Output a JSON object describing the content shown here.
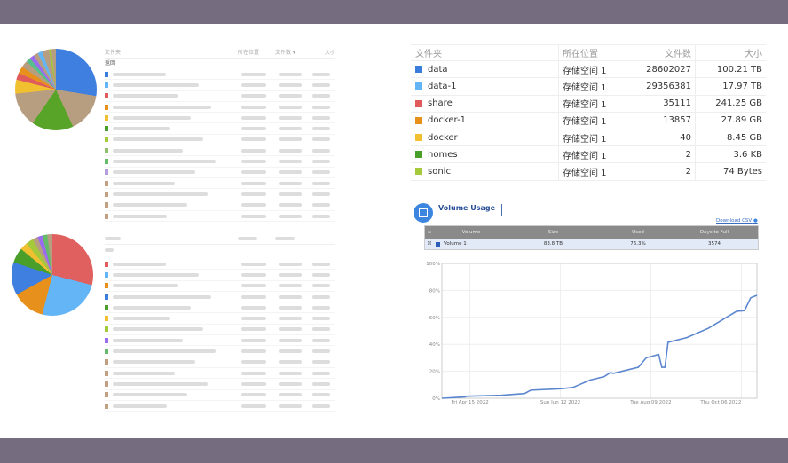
{
  "left_top": {
    "headers": [
      "文件夹",
      "所在位置",
      "文件数 ▾",
      "大小"
    ],
    "back_label": "返回",
    "row_colors": [
      "#3b7ddd",
      "#64b5f6",
      "#e05c5c",
      "#e8901c",
      "#f0c030",
      "#4a9e2a",
      "#a4c93a",
      "#8fbf6a",
      "#66bb6a",
      "#b39ddb",
      "#c0a080",
      "#c0a080",
      "#c0a080",
      "#c0a080"
    ],
    "pie": [
      {
        "v": 30,
        "c": "#3f7fdf"
      },
      {
        "v": 17,
        "c": "#b79e80"
      },
      {
        "v": 18,
        "c": "#58a428"
      },
      {
        "v": 15,
        "c": "#b79e80"
      },
      {
        "v": 6,
        "c": "#f0c030"
      },
      {
        "v": 3,
        "c": "#e05c5c"
      },
      {
        "v": 3,
        "c": "#e8901c"
      },
      {
        "v": 3,
        "c": "#b79e80"
      },
      {
        "v": 2,
        "c": "#55c08a"
      },
      {
        "v": 2,
        "c": "#9b6cf0"
      },
      {
        "v": 2,
        "c": "#b79e80"
      },
      {
        "v": 2,
        "c": "#64b5f6"
      },
      {
        "v": 3,
        "c": "#b79e80"
      },
      {
        "v": 1,
        "c": "#a4c93a"
      },
      {
        "v": 2,
        "c": "#b79e80"
      }
    ]
  },
  "left_bottom": {
    "row_colors": [
      "#e05c5c",
      "#64b5f6",
      "#e8901c",
      "#3b7ddd",
      "#4a9e2a",
      "#f0c030",
      "#a4c93a",
      "#9b6cf0",
      "#66bb6a",
      "#c0a080",
      "#c0a080",
      "#c0a080",
      "#c0a080",
      "#c0a080"
    ],
    "pie": [
      {
        "v": 29,
        "c": "#e06060"
      },
      {
        "v": 25,
        "c": "#64b5f6"
      },
      {
        "v": 13,
        "c": "#e8901c"
      },
      {
        "v": 13,
        "c": "#3f7fdf"
      },
      {
        "v": 6,
        "c": "#4a9e2a"
      },
      {
        "v": 3,
        "c": "#f0c030"
      },
      {
        "v": 3,
        "c": "#a4c93a"
      },
      {
        "v": 2,
        "c": "#b79e80"
      },
      {
        "v": 2,
        "c": "#9b6cf0"
      },
      {
        "v": 2,
        "c": "#66bb6a"
      },
      {
        "v": 2,
        "c": "#b79e80"
      }
    ]
  },
  "folders": {
    "headers": [
      "文件夹",
      "所在位置",
      "文件数",
      "大小"
    ],
    "rows": [
      {
        "name": "data",
        "loc": "存储空间 1",
        "count": "28602027",
        "size": "100.21 TB",
        "color": "#3b7ddd"
      },
      {
        "name": "data-1",
        "loc": "存储空间 1",
        "count": "29356381",
        "size": "17.97 TB",
        "color": "#64b5f6"
      },
      {
        "name": "share",
        "loc": "存储空间 1",
        "count": "35111",
        "size": "241.25 GB",
        "color": "#e05c5c"
      },
      {
        "name": "docker-1",
        "loc": "存储空间 1",
        "count": "13857",
        "size": "27.89 GB",
        "color": "#e8901c"
      },
      {
        "name": "docker",
        "loc": "存储空间 1",
        "count": "40",
        "size": "8.45 GB",
        "color": "#f0c030"
      },
      {
        "name": "homes",
        "loc": "存储空间 1",
        "count": "2",
        "size": "3.6 KB",
        "color": "#4a9e2a"
      },
      {
        "name": "sonic",
        "loc": "存储空间 1",
        "count": "2",
        "size": "74 Bytes",
        "color": "#a4c93a"
      }
    ]
  },
  "volume": {
    "title": "Volume Usage",
    "download": "Download CSV",
    "headers": [
      "Volume",
      "Size",
      "Used",
      "Days to Full"
    ],
    "row": {
      "name": "Volume 1",
      "size": "83.8 TB",
      "used": "76.3%",
      "days": "3574",
      "color": "#2a5cb8"
    }
  },
  "chart_data": {
    "type": "line",
    "x_ticks": [
      "Fri Apr 15 2022",
      "Sun Jun 12 2022",
      "Tue Aug 09 2022",
      "Thu Oct 06 2022"
    ],
    "y_ticks": [
      "0%",
      "20%",
      "40%",
      "60%",
      "80%",
      "100%"
    ],
    "ylim": [
      0,
      100
    ],
    "xlim": [
      "2022-03-28",
      "2022-10-16"
    ],
    "grid": true,
    "color": "#5b86cf",
    "points": [
      [
        "2022-03-28",
        0
      ],
      [
        "2022-04-12",
        1
      ],
      [
        "2022-04-13",
        1.5
      ],
      [
        "2022-05-05",
        2.2
      ],
      [
        "2022-05-20",
        3.5
      ],
      [
        "2022-05-24",
        6
      ],
      [
        "2022-06-12",
        7
      ],
      [
        "2022-06-20",
        8
      ],
      [
        "2022-06-24",
        10
      ],
      [
        "2022-07-01",
        13.5
      ],
      [
        "2022-07-10",
        16
      ],
      [
        "2022-07-14",
        19
      ],
      [
        "2022-07-16",
        18.5
      ],
      [
        "2022-08-01",
        23
      ],
      [
        "2022-08-06",
        30
      ],
      [
        "2022-08-14",
        32.5
      ],
      [
        "2022-08-16",
        23
      ],
      [
        "2022-08-18",
        23
      ],
      [
        "2022-08-20",
        41.5
      ],
      [
        "2022-09-01",
        45
      ],
      [
        "2022-09-15",
        52
      ],
      [
        "2022-09-25",
        59
      ],
      [
        "2022-10-03",
        64.5
      ],
      [
        "2022-10-08",
        65
      ],
      [
        "2022-10-12",
        74.5
      ],
      [
        "2022-10-16",
        76.3
      ]
    ]
  }
}
